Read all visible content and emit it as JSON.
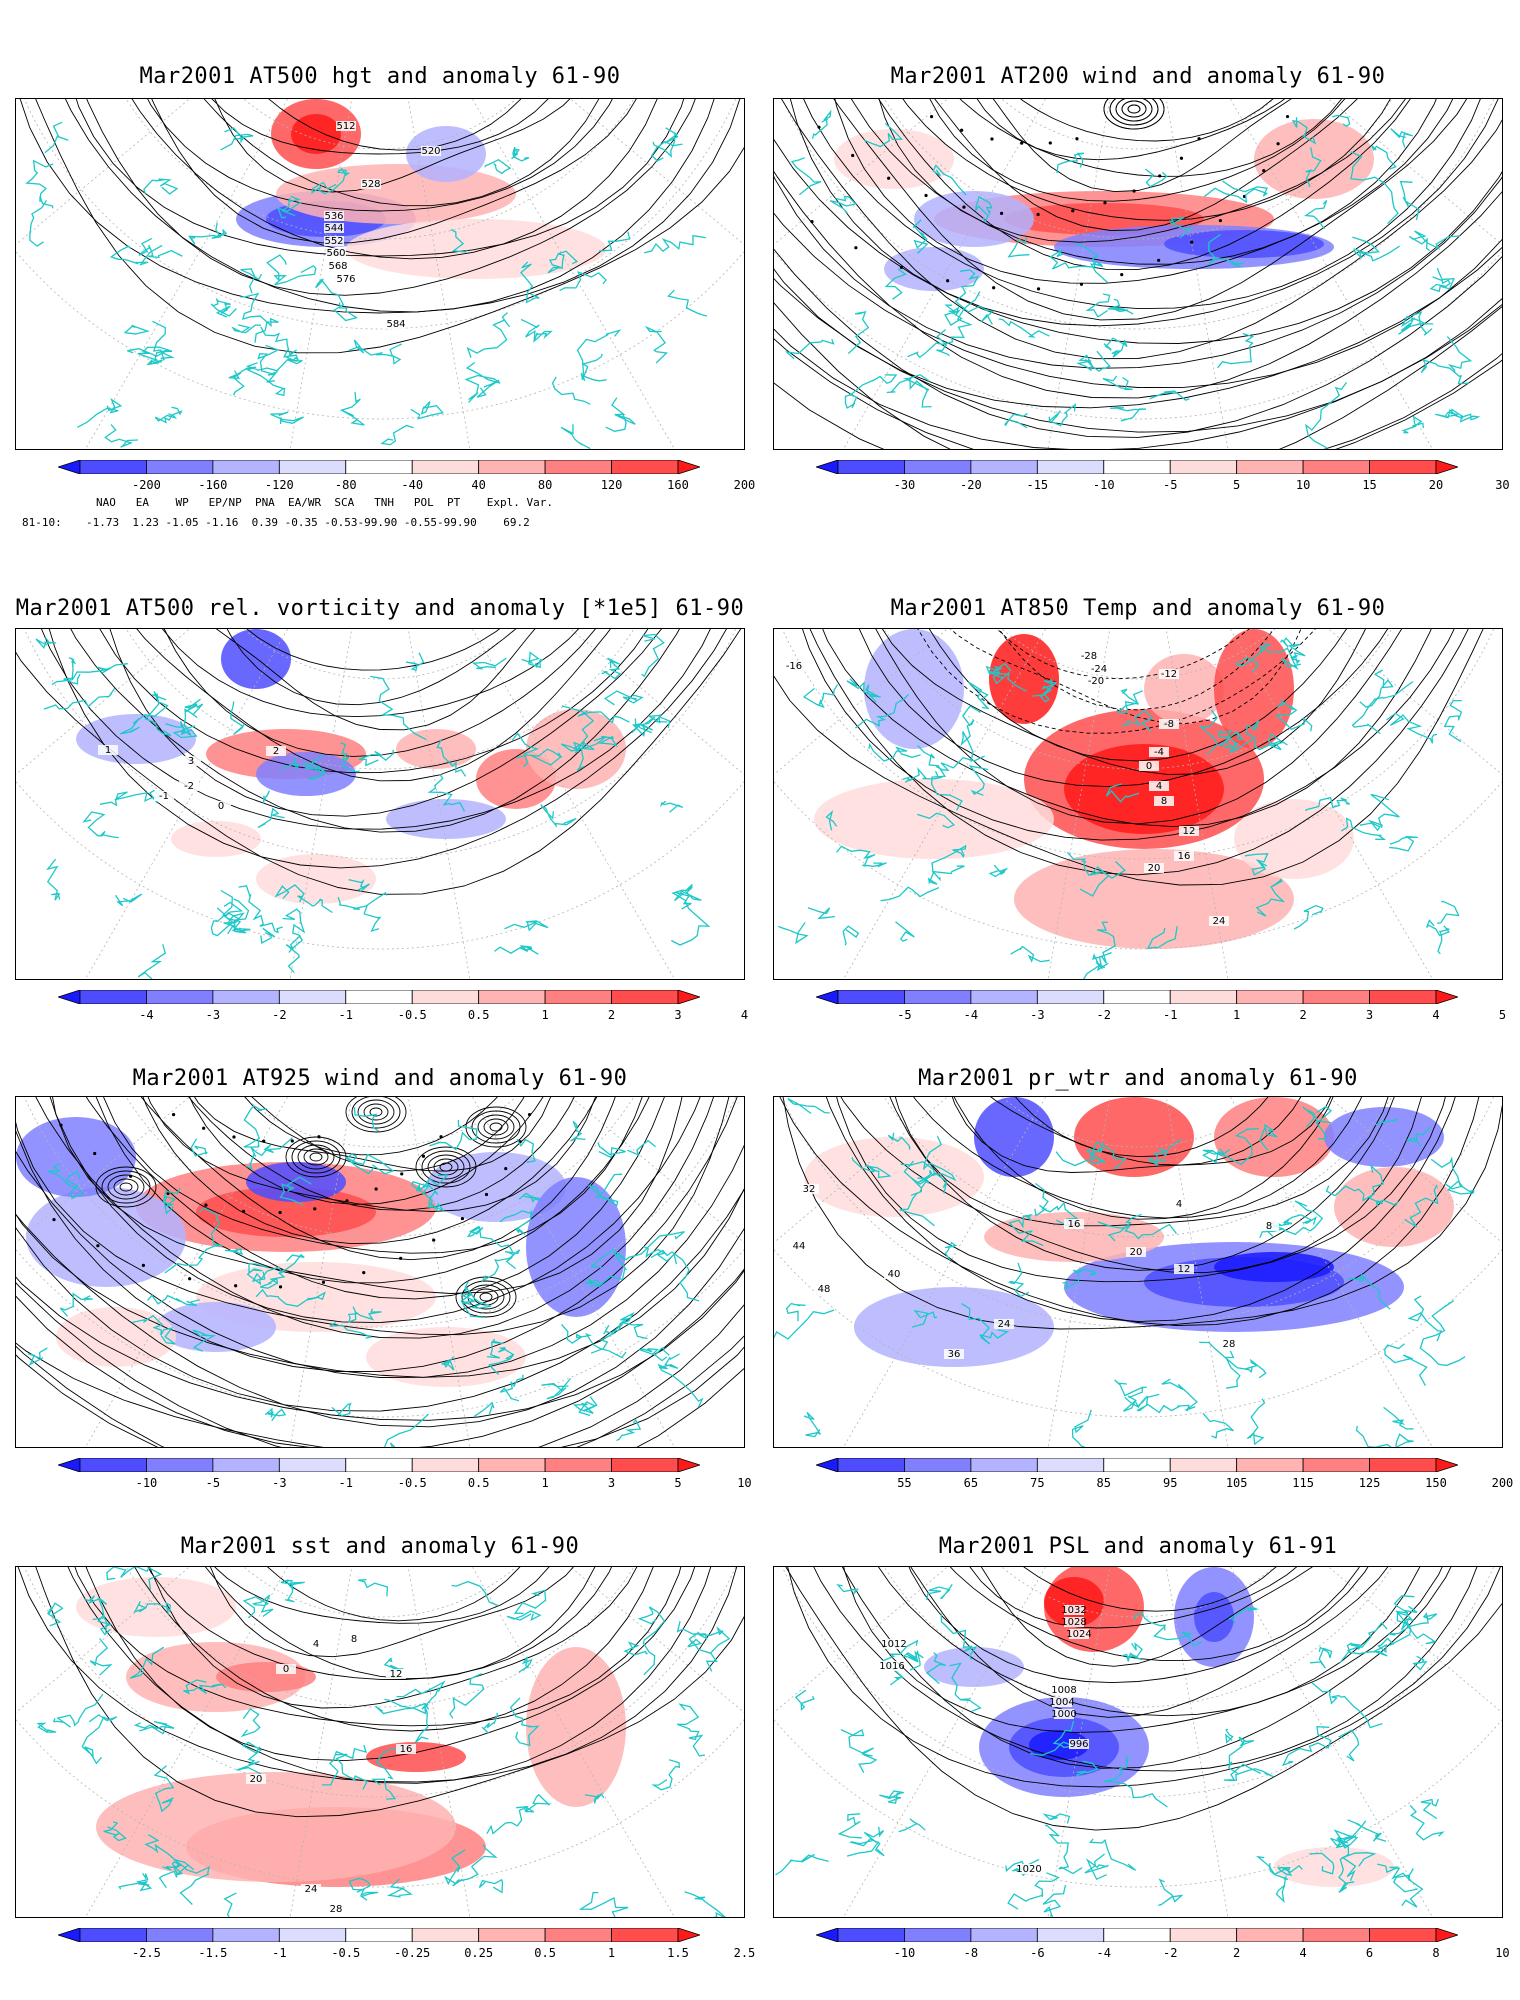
{
  "panels": [
    {
      "id": "p1",
      "title": "Mar2001 AT500 hgt and anomaly 61-90",
      "ticks": [
        "-200",
        "-160",
        "-120",
        "-80",
        "-40",
        "40",
        "80",
        "120",
        "160",
        "200"
      ],
      "colors": [
        "#1a1aff",
        "#4d4dff",
        "#8080ff",
        "#b3b3ff",
        "#dcdcff",
        "#ffffff",
        "#ffdcdc",
        "#ffb3b3",
        "#ff8080",
        "#ff4d4d",
        "#ff1a1a"
      ],
      "contour_labels": [
        "512",
        "520",
        "528",
        "536",
        "544",
        "552",
        "560",
        "568",
        "576",
        "584"
      ]
    },
    {
      "id": "p2",
      "title": "Mar2001 AT200 wind and anomaly 61-90",
      "ticks": [
        "-30",
        "-20",
        "-15",
        "-10",
        "-5",
        "5",
        "10",
        "15",
        "20",
        "30"
      ],
      "colors": [
        "#1a1aff",
        "#4d4dff",
        "#8080ff",
        "#b3b3ff",
        "#dcdcff",
        "#ffffff",
        "#ffdcdc",
        "#ffb3b3",
        "#ff8080",
        "#ff4d4d",
        "#ff1a1a"
      ],
      "contour_labels": []
    },
    {
      "id": "p3",
      "title": "Mar2001 AT500 rel. vorticity and anomaly [*1e5] 61-90",
      "ticks": [
        "-4",
        "-3",
        "-2",
        "-1",
        "-0.5",
        "0.5",
        "1",
        "2",
        "3",
        "4"
      ],
      "colors": [
        "#1a1aff",
        "#4d4dff",
        "#8080ff",
        "#b3b3ff",
        "#dcdcff",
        "#ffffff",
        "#ffdcdc",
        "#ffb3b3",
        "#ff8080",
        "#ff4d4d",
        "#ff1a1a"
      ],
      "contour_labels": [
        "0",
        "1",
        "-1",
        "2",
        "-2",
        "3"
      ]
    },
    {
      "id": "p4",
      "title": "Mar2001 AT850 Temp and anomaly 61-90",
      "ticks": [
        "-5",
        "-4",
        "-3",
        "-2",
        "-1",
        "1",
        "2",
        "3",
        "4",
        "5"
      ],
      "colors": [
        "#1a1aff",
        "#4d4dff",
        "#8080ff",
        "#b3b3ff",
        "#dcdcff",
        "#ffffff",
        "#ffdcdc",
        "#ffb3b3",
        "#ff8080",
        "#ff4d4d",
        "#ff1a1a"
      ],
      "contour_labels": [
        "-16",
        "-28",
        "-24",
        "-20",
        "-12",
        "-8",
        "-4",
        "0",
        "4",
        "8",
        "12",
        "16",
        "20",
        "24"
      ]
    },
    {
      "id": "p5",
      "title": "Mar2001 AT925 wind and anomaly 61-90",
      "ticks": [
        "-10",
        "-5",
        "-3",
        "-1",
        "-0.5",
        "0.5",
        "1",
        "3",
        "5",
        "10"
      ],
      "colors": [
        "#1a1aff",
        "#4d4dff",
        "#8080ff",
        "#b3b3ff",
        "#dcdcff",
        "#ffffff",
        "#ffdcdc",
        "#ffb3b3",
        "#ff8080",
        "#ff4d4d",
        "#ff1a1a"
      ],
      "contour_labels": []
    },
    {
      "id": "p6",
      "title": "Mar2001 pr_wtr and anomaly 61-90",
      "ticks": [
        "55",
        "65",
        "75",
        "85",
        "95",
        "105",
        "115",
        "125",
        "150",
        "200"
      ],
      "colors": [
        "#1a1aff",
        "#4d4dff",
        "#8080ff",
        "#b3b3ff",
        "#dcdcff",
        "#ffffff",
        "#ffdcdc",
        "#ffb3b3",
        "#ff8080",
        "#ff4d4d",
        "#ff1a1a"
      ],
      "contour_labels": [
        "4",
        "8",
        "12",
        "16",
        "20",
        "24",
        "28",
        "32",
        "36",
        "40",
        "44",
        "48"
      ]
    },
    {
      "id": "p7",
      "title": "Mar2001 sst and anomaly 61-90",
      "ticks": [
        "-2.5",
        "-1.5",
        "-1",
        "-0.5",
        "-0.25",
        "0.25",
        "0.5",
        "1",
        "1.5",
        "2.5"
      ],
      "colors": [
        "#1a1aff",
        "#4d4dff",
        "#8080ff",
        "#b3b3ff",
        "#dcdcff",
        "#ffffff",
        "#ffdcdc",
        "#ffb3b3",
        "#ff8080",
        "#ff4d4d",
        "#ff1a1a"
      ],
      "contour_labels": [
        "0",
        "4",
        "8",
        "12",
        "16",
        "20",
        "24",
        "28"
      ]
    },
    {
      "id": "p8",
      "title": "Mar2001 PSL and anomaly 61-91",
      "ticks": [
        "-10",
        "-8",
        "-6",
        "-4",
        "-2",
        "2",
        "4",
        "6",
        "8",
        "10"
      ],
      "colors": [
        "#1a1aff",
        "#4d4dff",
        "#8080ff",
        "#b3b3ff",
        "#dcdcff",
        "#ffffff",
        "#ffdcdc",
        "#ffb3b3",
        "#ff8080",
        "#ff4d4d",
        "#ff1a1a"
      ],
      "contour_labels": [
        "996",
        "1000",
        "1004",
        "1008",
        "1012",
        "1016",
        "1020",
        "1024",
        "1028",
        "1032"
      ]
    }
  ],
  "teleconnection": {
    "header": "NAO   EA    WP   EP/NP  PNA  EA/WR  SCA   TNH   POL  PT    Expl. Var.",
    "row_label": "81-10:",
    "values": "-1.73  1.23 -1.05 -1.16  0.39 -0.35 -0.53-99.90 -0.55-99.90    69.2"
  },
  "map_colors": {
    "coast": "#1ec8c8",
    "contour": "#000000",
    "grid": "#b4b4b4"
  }
}
